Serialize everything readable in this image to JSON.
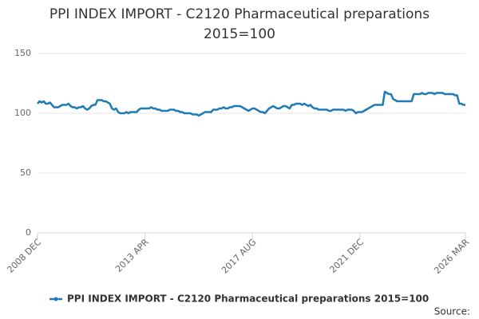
{
  "chart_data": {
    "type": "line",
    "title": "PPI INDEX IMPORT - C2120 Pharmaceutical preparations 2015=100",
    "source": "Source:",
    "categories": [
      "2008 DEC",
      null,
      null,
      null,
      null,
      null,
      null,
      null,
      null,
      null,
      null,
      null,
      null,
      null,
      null,
      null,
      null,
      null,
      null,
      null,
      null,
      null,
      null,
      null,
      null,
      null,
      null,
      null,
      null,
      null,
      null,
      null,
      null,
      null,
      null,
      null,
      null,
      null,
      null,
      null,
      null,
      null,
      null,
      null,
      null,
      null,
      null,
      null,
      null,
      null,
      null,
      null,
      "2013 APR",
      null,
      null,
      null,
      null,
      null,
      null,
      null,
      null,
      null,
      null,
      null,
      null,
      null,
      null,
      null,
      null,
      null,
      null,
      null,
      null,
      null,
      null,
      null,
      null,
      null,
      null,
      null,
      null,
      null,
      null,
      null,
      null,
      null,
      null,
      null,
      null,
      null,
      null,
      null,
      null,
      null,
      null,
      null,
      null,
      null,
      null,
      null,
      null,
      null,
      null,
      null,
      "2017 AUG",
      null,
      null,
      null,
      null,
      null,
      null,
      null,
      null,
      null,
      null,
      null,
      null,
      null,
      null,
      null,
      null,
      null,
      null,
      null,
      null,
      null,
      null,
      null,
      null,
      null,
      null,
      null,
      null,
      null,
      null,
      null,
      null,
      null,
      null,
      null,
      null,
      null,
      null,
      null,
      null,
      null,
      null,
      null,
      null,
      null,
      null,
      null,
      null,
      null,
      null,
      null,
      "2021 DEC",
      null,
      null,
      null,
      null,
      null,
      null,
      null,
      null,
      null,
      null,
      null,
      null,
      null,
      null,
      null,
      null,
      null,
      null,
      null,
      null,
      null,
      null,
      null,
      null,
      null,
      null,
      null,
      null,
      null,
      null,
      null,
      null,
      null,
      null,
      null,
      null,
      null,
      null,
      null,
      null,
      null,
      null,
      null,
      null,
      null,
      null,
      null,
      null,
      null,
      null,
      "2026 MAR"
    ],
    "series": [
      {
        "name": "PPI INDEX IMPORT - C2120 Pharmaceutical preparations 2015=100",
        "color": "#1f7bb6",
        "values": [
          108,
          110,
          109,
          110,
          108,
          108,
          109,
          107,
          105,
          105,
          105,
          106,
          107,
          107,
          107,
          108,
          106,
          105,
          105,
          104,
          105,
          105,
          106,
          104,
          103,
          104,
          106,
          107,
          107,
          111,
          111,
          111,
          110,
          110,
          109,
          108,
          104,
          103,
          104,
          101,
          100,
          100,
          100,
          101,
          100,
          101,
          101,
          101,
          101,
          103,
          104,
          104,
          104,
          104,
          104,
          105,
          104,
          104,
          103,
          103,
          102,
          102,
          102,
          102,
          103,
          103,
          103,
          102,
          102,
          101,
          101,
          100,
          100,
          100,
          100,
          99,
          99,
          99,
          98,
          99,
          100,
          101,
          101,
          101,
          101,
          103,
          103,
          103,
          104,
          104,
          105,
          104,
          104,
          105,
          105,
          106,
          106,
          106,
          106,
          105,
          104,
          103,
          102,
          103,
          104,
          104,
          103,
          102,
          101,
          101,
          100,
          102,
          104,
          105,
          106,
          105,
          104,
          104,
          105,
          106,
          106,
          105,
          104,
          107,
          107,
          108,
          108,
          108,
          107,
          108,
          107,
          106,
          107,
          105,
          104,
          104,
          103,
          103,
          103,
          103,
          103,
          102,
          102,
          103,
          103,
          103,
          103,
          103,
          103,
          102,
          103,
          103,
          103,
          102,
          100,
          101,
          101,
          101,
          102,
          103,
          104,
          105,
          106,
          107,
          107,
          107,
          107,
          107,
          118,
          117,
          116,
          116,
          112,
          111,
          110,
          110,
          110,
          110,
          110,
          110,
          110,
          110,
          116,
          116,
          116,
          116,
          117,
          116,
          116,
          117,
          117,
          117,
          116,
          117,
          117,
          117,
          117,
          116,
          116,
          116,
          116,
          116,
          115,
          115,
          108,
          108,
          107,
          107
        ]
      }
    ],
    "ylim": [
      0,
      150
    ],
    "yticks": [
      0,
      50,
      100,
      150
    ],
    "grid": true
  }
}
